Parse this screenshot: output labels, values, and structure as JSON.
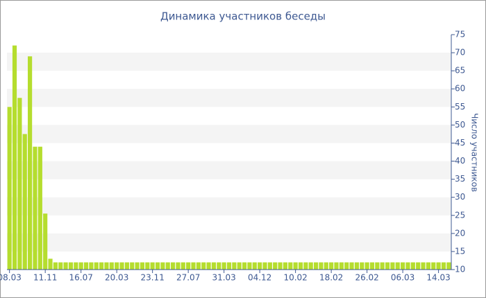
{
  "chart_data": {
    "type": "bar",
    "title": "Динамика участников беседы",
    "y_label": "Число участников",
    "categories": [
      "08.03",
      null,
      null,
      null,
      null,
      null,
      null,
      "11.11",
      null,
      null,
      null,
      null,
      null,
      null,
      "16.07",
      null,
      null,
      null,
      null,
      null,
      null,
      "20.03",
      null,
      null,
      null,
      null,
      null,
      null,
      "23.11",
      null,
      null,
      null,
      null,
      null,
      null,
      "27.07",
      null,
      null,
      null,
      null,
      null,
      null,
      "31.03",
      null,
      null,
      null,
      null,
      null,
      null,
      "04.12",
      null,
      null,
      null,
      null,
      null,
      null,
      "10.02",
      null,
      null,
      null,
      null,
      null,
      null,
      "18.02",
      null,
      null,
      null,
      null,
      null,
      null,
      "26.02",
      null,
      null,
      null,
      null,
      null,
      null,
      "06.03",
      null,
      null,
      null,
      null,
      null,
      null,
      "14.03",
      null,
      null
    ],
    "values": [
      55,
      72,
      57.5,
      47.5,
      69,
      44,
      44,
      25.5,
      13,
      12,
      12,
      12,
      12,
      12,
      12,
      12,
      12,
      12,
      12,
      12,
      12,
      12,
      12,
      12,
      12,
      12,
      12,
      12,
      12,
      12,
      12,
      12,
      12,
      12,
      12,
      12,
      12,
      12,
      12,
      12,
      12,
      12,
      12,
      12,
      12,
      12,
      12,
      12,
      12,
      12,
      12,
      12,
      12,
      12,
      12,
      12,
      12,
      12,
      12,
      12,
      12,
      12,
      12,
      12,
      12,
      12,
      12,
      12,
      12,
      12,
      12,
      12,
      12,
      12,
      12,
      12,
      12,
      12,
      12,
      12,
      12,
      12,
      12,
      12,
      12,
      12,
      12
    ],
    "color": "#b5dd2e",
    "ylim": [
      10,
      75
    ],
    "yticks": [
      10,
      15,
      20,
      25,
      30,
      35,
      40,
      45,
      50,
      55,
      60,
      65,
      70,
      75
    ],
    "grid": "bands"
  }
}
